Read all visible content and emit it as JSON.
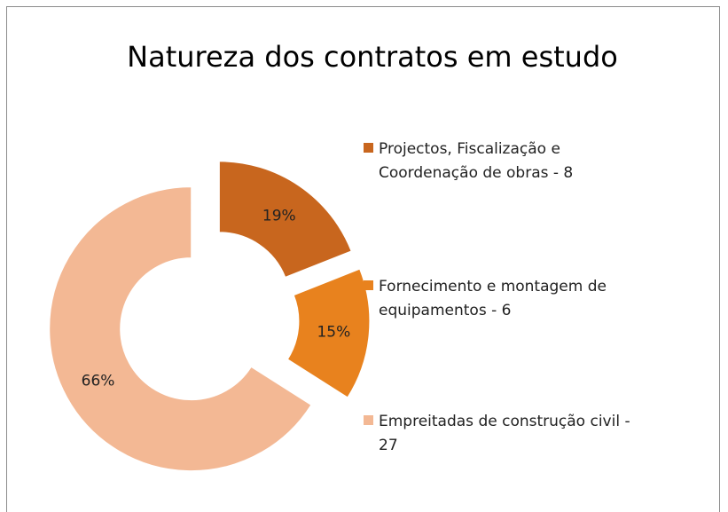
{
  "chart_data": {
    "type": "doughnut",
    "title": "Natureza dos contratos em estudo",
    "categories": [
      "Projectos, Fiscalização e Coordenação de obras - 8",
      "Fornecimento e montagem de equipamentos - 6",
      "Empreitadas de construção civil - 27"
    ],
    "values": [
      19,
      15,
      66
    ],
    "value_labels": [
      "19%",
      "15%",
      "66%"
    ],
    "colors": [
      "#c8661e",
      "#e8821e",
      "#f3b894"
    ],
    "legend": "right"
  }
}
